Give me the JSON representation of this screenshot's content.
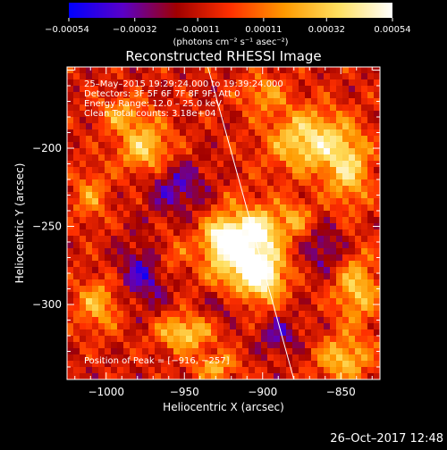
{
  "chart_data": {
    "type": "heatmap",
    "title": "Reconstructed RHESSI Image",
    "xlabel": "Heliocentric X (arcsec)",
    "ylabel": "Heliocentric Y (arcsec)",
    "xlim": [
      -1025,
      -825
    ],
    "ylim": [
      -348,
      -148
    ],
    "x_ticks": [
      -1000,
      -950,
      -900,
      -850
    ],
    "y_ticks": [
      -200,
      -250,
      -300
    ],
    "x_tick_labels": [
      "−1000",
      "−950",
      "−900",
      "−850"
    ],
    "y_tick_labels": [
      "−200",
      "−250",
      "−300"
    ],
    "colorbar": {
      "range": [
        -0.00054,
        0.00054
      ],
      "tick_values": [
        -0.00054,
        -0.00032,
        -0.00011,
        0.00011,
        0.00032,
        0.00054
      ],
      "tick_labels": [
        "−0.00054",
        "−0.00032",
        "−0.00011",
        "0.00011",
        "0.00032",
        "0.00054"
      ],
      "unit_label": "(photons cm⁻² s⁻¹ asec⁻²)",
      "colormap": [
        "#0000ff",
        "#5a00c8",
        "#a00000",
        "#ff3000",
        "#ff9a00",
        "#ffe060",
        "#ffffff"
      ]
    },
    "info_lines": [
      "25–May–2015 19:29:24.000 to 19:39:24.000",
      "Detectors: 3F 5F 6F 7F 8F 9F; Att 0",
      "Energy Range: 12.0 – 25.0 keV",
      "Clean     Total counts: 3.18e+04"
    ],
    "peak_label": "Position of Peak = [−916, −257]",
    "limb_line": {
      "color": "#ffffff",
      "points": [
        [
          -935,
          -148
        ],
        [
          -880,
          -348
        ]
      ]
    },
    "sources": [
      {
        "x": -912,
        "y": -268,
        "amp": 1.15,
        "sx": 16,
        "sy": 20
      },
      {
        "x": -925,
        "y": -258,
        "amp": 0.8,
        "sx": 8,
        "sy": 8
      },
      {
        "x": -898,
        "y": -282,
        "amp": 0.7,
        "sx": 8,
        "sy": 10
      },
      {
        "x": -902,
        "y": -252,
        "amp": 0.6,
        "sx": 7,
        "sy": 7
      },
      {
        "x": -870,
        "y": -195,
        "amp": 0.9,
        "sx": 18,
        "sy": 14
      },
      {
        "x": -845,
        "y": -215,
        "amp": 0.7,
        "sx": 10,
        "sy": 16
      },
      {
        "x": -975,
        "y": -200,
        "amp": 0.75,
        "sx": 12,
        "sy": 12
      },
      {
        "x": -990,
        "y": -178,
        "amp": 0.5,
        "sx": 10,
        "sy": 8
      },
      {
        "x": -1005,
        "y": -300,
        "amp": 0.6,
        "sx": 10,
        "sy": 12
      },
      {
        "x": -950,
        "y": -318,
        "amp": 0.8,
        "sx": 12,
        "sy": 8
      },
      {
        "x": -930,
        "y": -340,
        "amp": 0.6,
        "sx": 10,
        "sy": 6
      },
      {
        "x": -840,
        "y": -290,
        "amp": 0.7,
        "sx": 10,
        "sy": 16
      },
      {
        "x": -848,
        "y": -335,
        "amp": 0.7,
        "sx": 12,
        "sy": 10
      },
      {
        "x": -880,
        "y": -245,
        "amp": 0.5,
        "sx": 8,
        "sy": 8
      },
      {
        "x": -960,
        "y": -270,
        "amp": 0.4,
        "sx": 8,
        "sy": 10
      },
      {
        "x": -900,
        "y": -165,
        "amp": 0.5,
        "sx": 10,
        "sy": 8
      },
      {
        "x": -1010,
        "y": -230,
        "amp": 0.45,
        "sx": 8,
        "sy": 12
      },
      {
        "x": -955,
        "y": -225,
        "amp": -0.5,
        "sx": 14,
        "sy": 12
      },
      {
        "x": -975,
        "y": -280,
        "amp": -0.55,
        "sx": 12,
        "sy": 14
      },
      {
        "x": -860,
        "y": -265,
        "amp": -0.45,
        "sx": 10,
        "sy": 10
      },
      {
        "x": -925,
        "y": -300,
        "amp": -0.4,
        "sx": 10,
        "sy": 8
      },
      {
        "x": -890,
        "y": -320,
        "amp": -0.45,
        "sx": 10,
        "sy": 8
      }
    ]
  },
  "footer": {
    "timestamp": "26–Oct–2017 12:48"
  }
}
